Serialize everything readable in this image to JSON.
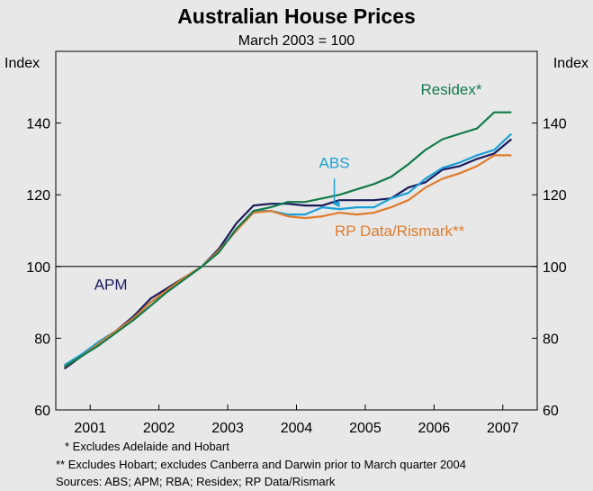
{
  "chart_data": {
    "type": "line",
    "title": "Australian House Prices",
    "subtitle": "March 2003 = 100",
    "ylabel_left": "Index",
    "ylabel_right": "Index",
    "ylim": [
      60,
      160
    ],
    "yticks": [
      60,
      80,
      100,
      120,
      140
    ],
    "xlim": [
      2000.5,
      2007.5
    ],
    "xticks": [
      "2001",
      "2002",
      "2003",
      "2004",
      "2005",
      "2006",
      "2007"
    ],
    "reference_line": 100,
    "grid": false,
    "series": [
      {
        "name": "APM",
        "color": "#1a1a5c",
        "x": [
          2000.625,
          2000.875,
          2001.125,
          2001.375,
          2001.625,
          2001.875,
          2002.125,
          2002.375,
          2002.625,
          2002.875,
          2003.125,
          2003.375,
          2003.625,
          2003.875,
          2004.125,
          2004.375,
          2004.625,
          2004.875,
          2005.125,
          2005.375,
          2005.625,
          2005.875,
          2006.125,
          2006.375,
          2006.625,
          2006.875,
          2007.125
        ],
        "y": [
          71.5,
          75,
          79,
          82,
          86,
          91,
          94,
          97,
          100,
          105,
          112,
          117,
          117.5,
          117.5,
          117,
          117,
          118.5,
          118.5,
          118.5,
          119,
          122,
          123.5,
          127,
          128,
          130,
          131.5,
          135.5
        ]
      },
      {
        "name": "ABS",
        "color": "#1aa0d8",
        "x": [
          2000.625,
          2000.875,
          2001.125,
          2001.375,
          2001.625,
          2001.875,
          2002.125,
          2002.375,
          2002.625,
          2002.875,
          2003.125,
          2003.375,
          2003.625,
          2003.875,
          2004.125,
          2004.375,
          2004.625,
          2004.875,
          2005.125,
          2005.375,
          2005.625,
          2005.875,
          2006.125,
          2006.375,
          2006.625,
          2006.875,
          2007.125
        ],
        "y": [
          72.5,
          75.5,
          79,
          82,
          85.5,
          90,
          93,
          96.5,
          100,
          104.5,
          110,
          115.5,
          115.5,
          114.5,
          114.5,
          116.5,
          116,
          116.5,
          116.5,
          119,
          120.5,
          124.5,
          127.5,
          129,
          131,
          132.5,
          137
        ]
      },
      {
        "name": "RP Data/Rismark**",
        "color": "#e07b2c",
        "x": [
          2000.625,
          2000.875,
          2001.125,
          2001.375,
          2001.625,
          2001.875,
          2002.125,
          2002.375,
          2002.625,
          2002.875,
          2003.125,
          2003.375,
          2003.625,
          2003.875,
          2004.125,
          2004.375,
          2004.625,
          2004.875,
          2005.125,
          2005.375,
          2005.625,
          2005.875,
          2006.125,
          2006.375,
          2006.625,
          2006.875,
          2007.125
        ],
        "y": [
          72,
          75,
          78.5,
          82,
          85.5,
          90,
          93.5,
          97,
          100,
          104.5,
          110,
          115,
          115.5,
          114,
          113.5,
          114,
          115,
          114.5,
          115,
          116.5,
          118.5,
          122,
          124.5,
          126,
          128,
          131,
          131
        ]
      },
      {
        "name": "Residex*",
        "color": "#137a4c",
        "x": [
          2000.625,
          2000.875,
          2001.125,
          2001.375,
          2001.625,
          2001.875,
          2002.125,
          2002.375,
          2002.625,
          2002.875,
          2003.125,
          2003.375,
          2003.625,
          2003.875,
          2004.125,
          2004.375,
          2004.625,
          2004.875,
          2005.125,
          2005.375,
          2005.625,
          2005.875,
          2006.125,
          2006.375,
          2006.625,
          2006.875,
          2007.125
        ],
        "y": [
          72,
          75,
          78,
          81.5,
          85,
          89,
          93,
          96.5,
          100,
          104,
          110.5,
          115.5,
          116.5,
          118,
          118,
          119,
          120,
          121.5,
          123,
          125,
          128.5,
          132.5,
          135.5,
          137,
          138.5,
          143,
          143
        ]
      }
    ],
    "labels": [
      {
        "text": "Residex*",
        "x": 2006.25,
        "y": 148,
        "color": "#137a4c"
      },
      {
        "text": "ABS",
        "x": 2004.55,
        "y": 127.5,
        "color": "#1aa0d8"
      },
      {
        "text": "RP Data/Rismark**",
        "x": 2005.5,
        "y": 108.5,
        "color": "#e07b2c"
      },
      {
        "text": "APM",
        "x": 2001.3,
        "y": 93.5,
        "color": "#1a1a5c"
      }
    ],
    "annotation_arrow": {
      "from": [
        2004.55,
        124.5
      ],
      "to": [
        2004.55,
        115.5
      ],
      "color": "#1aa0d8"
    },
    "footnotes": [
      "*   Excludes Adelaide and Hobart",
      "** Excludes Hobart; excludes Canberra and Darwin prior to March quarter 2004",
      "Sources: ABS; APM; RBA; Residex; RP Data/Rismark"
    ]
  }
}
